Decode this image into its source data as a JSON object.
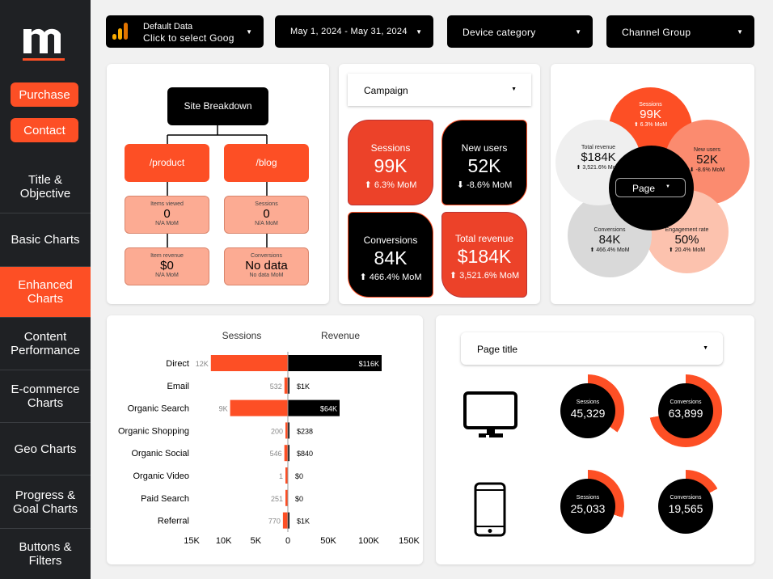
{
  "sidebar": {
    "buttons": [
      "Purchase",
      "Contact"
    ],
    "nav": [
      "Title & Objective",
      "Basic Charts",
      "Enhanced Charts",
      "Content Performance",
      "E-commerce Charts",
      "Geo Charts",
      "Progress & Goal Charts",
      "Buttons & Filters"
    ],
    "active_index": 2
  },
  "controls": {
    "data_source_line1": "Default Data",
    "data_source_line2": "Click to select Goog",
    "date_range": "May 1, 2024 - May 31, 2024",
    "device": "Device category",
    "channel": "Channel Group"
  },
  "breakdown": {
    "root": "Site Breakdown",
    "product": {
      "label": "/product",
      "m1_title": "Items viewed",
      "m1_value": "0",
      "m1_mom": "N/A MoM",
      "m2_title": "Item revenue",
      "m2_value": "$0",
      "m2_mom": "N/A MoM"
    },
    "blog": {
      "label": "/blog",
      "m1_title": "Sessions",
      "m1_value": "0",
      "m1_mom": "N/A MoM",
      "m2_title": "Conversions",
      "m2_value": "No data",
      "m2_mom": "No data MoM"
    }
  },
  "campaign": {
    "dropdown": "Campaign",
    "kpis": [
      {
        "title": "Sessions",
        "value": "99K",
        "mom": "⬆ 6.3% MoM"
      },
      {
        "title": "New users",
        "value": "52K",
        "mom": "⬇ -8.6% MoM"
      },
      {
        "title": "Conversions",
        "value": "84K",
        "mom": "⬆ 466.4% MoM"
      },
      {
        "title": "Total revenue",
        "value": "$184K",
        "mom": "⬆ 3,521.6% MoM"
      }
    ]
  },
  "flower": {
    "center": "Page",
    "petals": [
      {
        "title": "Sessions",
        "value": "99K",
        "mom": "⬆ 6.3% MoM"
      },
      {
        "title": "New users",
        "value": "52K",
        "mom": "⬇ -8.6% MoM"
      },
      {
        "title": "Engagement rate",
        "value": "50%",
        "mom": "⬆ 20.4% MoM"
      },
      {
        "title": "Conversions",
        "value": "84K",
        "mom": "⬆ 466.4% MoM"
      },
      {
        "title": "Total revenue",
        "value": "$184K",
        "mom": "⬆ 3,521.6% MoM"
      }
    ]
  },
  "chart_data": {
    "type": "bar",
    "left_title": "Sessions",
    "right_title": "Revenue",
    "categories": [
      "Direct",
      "Email",
      "Organic Search",
      "Organic Shopping",
      "Organic Social",
      "Organic Video",
      "Paid Search",
      "Referral"
    ],
    "series": [
      {
        "name": "Sessions",
        "values": [
          12000,
          532,
          9000,
          200,
          546,
          1,
          251,
          770
        ],
        "labels": [
          "12K",
          "532",
          "9K",
          "200",
          "546",
          "1",
          "251",
          "770"
        ]
      },
      {
        "name": "Revenue",
        "values": [
          116000,
          1000,
          64000,
          238,
          840,
          0,
          0,
          1000
        ],
        "labels": [
          "$116K",
          "$1K",
          "$64K",
          "$238",
          "$840",
          "$0",
          "$0",
          "$1K"
        ]
      }
    ],
    "sessions_axis_max": 15000,
    "revenue_axis_max": 150000,
    "axis_ticks": [
      "15K",
      "10K",
      "5K",
      "0",
      "50K",
      "100K",
      "150K"
    ],
    "colors": {
      "sessions": "#fd4f25",
      "revenue": "#000000"
    }
  },
  "devices": {
    "dropdown": "Page title",
    "rows": [
      {
        "icon": "desktop-icon",
        "sessions_title": "Sessions",
        "sessions": "45,329",
        "sessions_ratio": 0.35,
        "conv_title": "Conversions",
        "conversions": "63,899",
        "conv_ratio": 0.72
      },
      {
        "icon": "mobile-icon",
        "sessions_title": "Sessions",
        "sessions": "25,033",
        "sessions_ratio": 0.3,
        "conv_title": "Conversions",
        "conversions": "19,565",
        "conv_ratio": 0.17
      }
    ]
  },
  "colors": {
    "accent": "#fd4f25",
    "dark": "#1f2124",
    "light_accent": "#fcab93"
  }
}
